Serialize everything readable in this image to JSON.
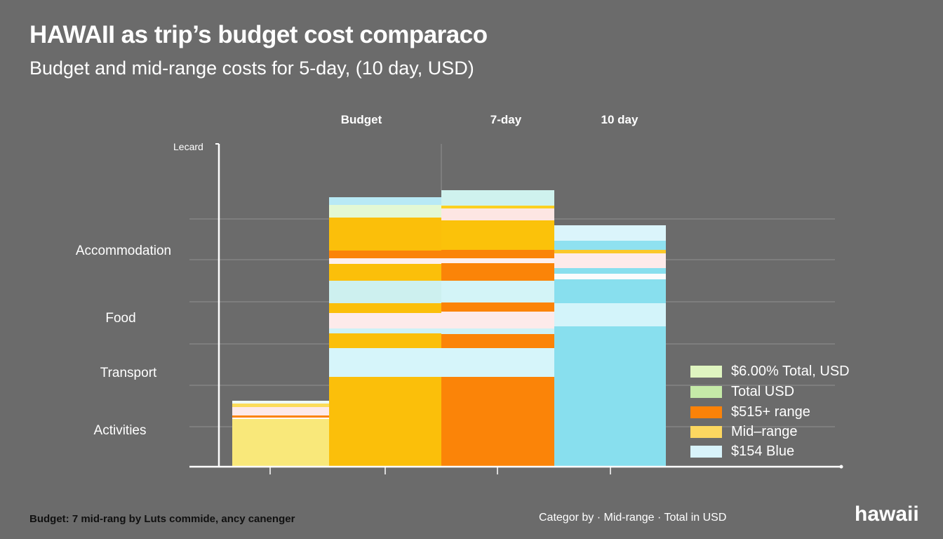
{
  "chart_data": {
    "type": "bar",
    "stacked": true,
    "title": "HAWAII as trip’s budget cost comparaco",
    "subtitle": "Budget and mid-range costs for 5-day, (10 day, USD)",
    "column_labels": [
      "Budget",
      "7-day",
      "10 day"
    ],
    "y_axis_tag": "Lecard",
    "y_categories": [
      "Accommodation",
      "Food",
      "Transport",
      "Activities"
    ],
    "grid": true,
    "legend_position": "right",
    "legend": [
      {
        "label": "$6.00% Total, USD",
        "color": "#dff5c0"
      },
      {
        "label": "Total USD",
        "color": "#c5eaa8"
      },
      {
        "label": "$515+ range",
        "color": "#fb8208"
      },
      {
        "label": "Mid–range",
        "color": "#fcd760"
      },
      {
        "label": "$154 Blue",
        "color": "#d8f3fa"
      }
    ],
    "bars": [
      {
        "segments": [
          {
            "value": 68,
            "color": "#f9e87a"
          },
          {
            "value": 2,
            "color": "#ffffff"
          },
          {
            "value": 3,
            "color": "#fb8408"
          },
          {
            "value": 12,
            "color": "#fdeaea"
          },
          {
            "value": 5,
            "color": "#fbdc5a"
          },
          {
            "value": 4,
            "color": "#eef9f6"
          }
        ]
      },
      {
        "segments": [
          {
            "value": 128,
            "color": "#fbbf0a"
          },
          {
            "value": 41,
            "color": "#d6f5fa"
          },
          {
            "value": 21,
            "color": "#fbbf0a"
          },
          {
            "value": 7,
            "color": "#cdf2f6"
          },
          {
            "value": 22,
            "color": "#fdeaea"
          },
          {
            "value": 14,
            "color": "#fbbf0a"
          },
          {
            "value": 32,
            "color": "#cdf0ef"
          },
          {
            "value": 24,
            "color": "#fbbf0a"
          },
          {
            "value": 8,
            "color": "#fdf0ee"
          },
          {
            "value": 11,
            "color": "#fb8408"
          },
          {
            "value": 47,
            "color": "#fbbf0a"
          },
          {
            "value": 18,
            "color": "#e3f8d4"
          },
          {
            "value": 11,
            "color": "#b8e9f5"
          }
        ]
      },
      {
        "segments": [
          {
            "value": 128,
            "color": "#fb8408"
          },
          {
            "value": 41,
            "color": "#d6f5fa"
          },
          {
            "value": 20,
            "color": "#fb8408"
          },
          {
            "value": 8,
            "color": "#cdf2f6"
          },
          {
            "value": 24,
            "color": "#fdeaea"
          },
          {
            "value": 13,
            "color": "#fb8408"
          },
          {
            "value": 31,
            "color": "#d3f4f7"
          },
          {
            "value": 25,
            "color": "#fb8408"
          },
          {
            "value": 7,
            "color": "#fdf0ee"
          },
          {
            "value": 12,
            "color": "#fb8408"
          },
          {
            "value": 42,
            "color": "#fbc20a"
          },
          {
            "value": 17,
            "color": "#fde6e3"
          },
          {
            "value": 4,
            "color": "#fbd020"
          },
          {
            "value": 22,
            "color": "#cff2ee"
          }
        ]
      },
      {
        "segments": [
          {
            "value": 200,
            "color": "#88dfee"
          },
          {
            "value": 33,
            "color": "#d3f4fa"
          },
          {
            "value": 34,
            "color": "#88dfee"
          },
          {
            "value": 8,
            "color": "#fafcfc"
          },
          {
            "value": 8,
            "color": "#88dfee"
          },
          {
            "value": 21,
            "color": "#fdeaea"
          },
          {
            "value": 5,
            "color": "#fbc82a"
          },
          {
            "value": 13,
            "color": "#8fe1f0"
          },
          {
            "value": 22,
            "color": "#dbf5fb"
          }
        ]
      }
    ]
  },
  "footer": {
    "left": "Budget: 7 mid-rang by Luts commide, ancy canenger",
    "right": "Categor by · Mid-range · Total in USD",
    "brand": "hawaii"
  }
}
